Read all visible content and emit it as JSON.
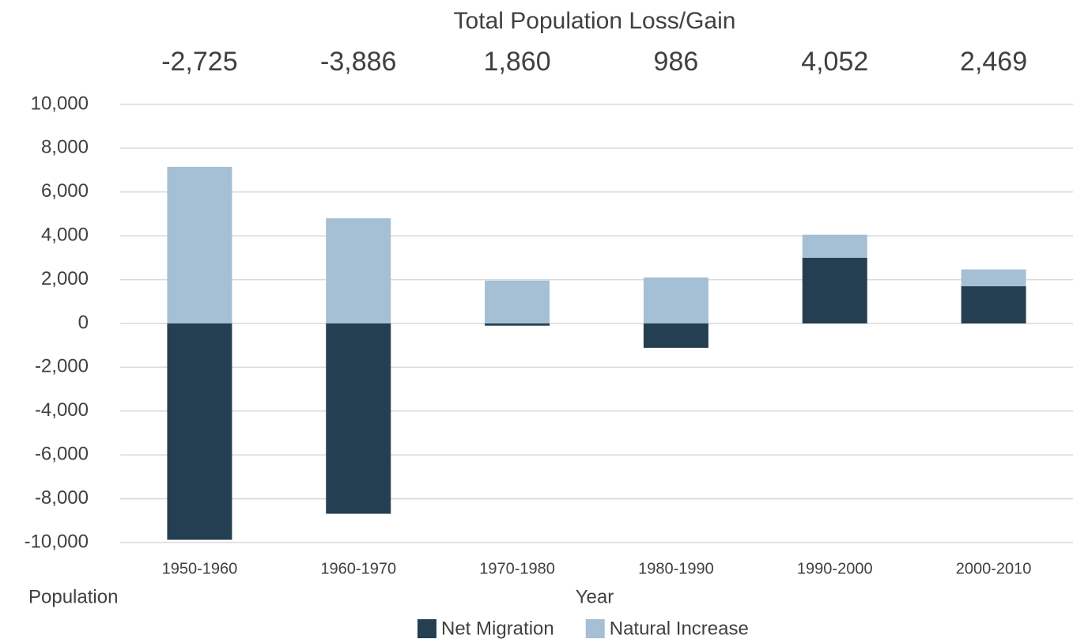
{
  "chart_data": {
    "type": "stacked_bar",
    "title": "Total Population Loss/Gain",
    "x_label": "Year",
    "y_label": "Population",
    "categories": [
      "1950-1960",
      "1960-1970",
      "1970-1980",
      "1980-1990",
      "1990-2000",
      "2000-2010"
    ],
    "series": [
      {
        "name": "Net Migration",
        "color": "#253f52",
        "values": [
          -9875,
          -8686,
          -100,
          -1114,
          3000,
          1700
        ]
      },
      {
        "name": "Natural Increase",
        "color": "#a5bfd4",
        "values": [
          7150,
          4800,
          1960,
          2100,
          1052,
          769
        ]
      }
    ],
    "totals": [
      -2725,
      -3886,
      1860,
      986,
      4052,
      2469
    ],
    "total_labels": [
      "-2,725",
      "-3,886",
      "1,860",
      "986",
      "4,052",
      "2,469"
    ],
    "ylim": [
      -10000,
      10000
    ],
    "yticks": [
      {
        "value": -10000,
        "label": "-10,000"
      },
      {
        "value": -8000,
        "label": "-8,000"
      },
      {
        "value": -6000,
        "label": "-6,000"
      },
      {
        "value": -4000,
        "label": "-4,000"
      },
      {
        "value": -2000,
        "label": "-2,000"
      },
      0,
      {
        "value": 2000,
        "label": "2,000"
      },
      {
        "value": 4000,
        "label": "4,000"
      },
      {
        "value": 6000,
        "label": "6,000"
      },
      {
        "value": 8000,
        "label": "8,000"
      },
      {
        "value": 10000,
        "label": "10,000"
      }
    ],
    "grid": true,
    "legend": "bottom"
  }
}
